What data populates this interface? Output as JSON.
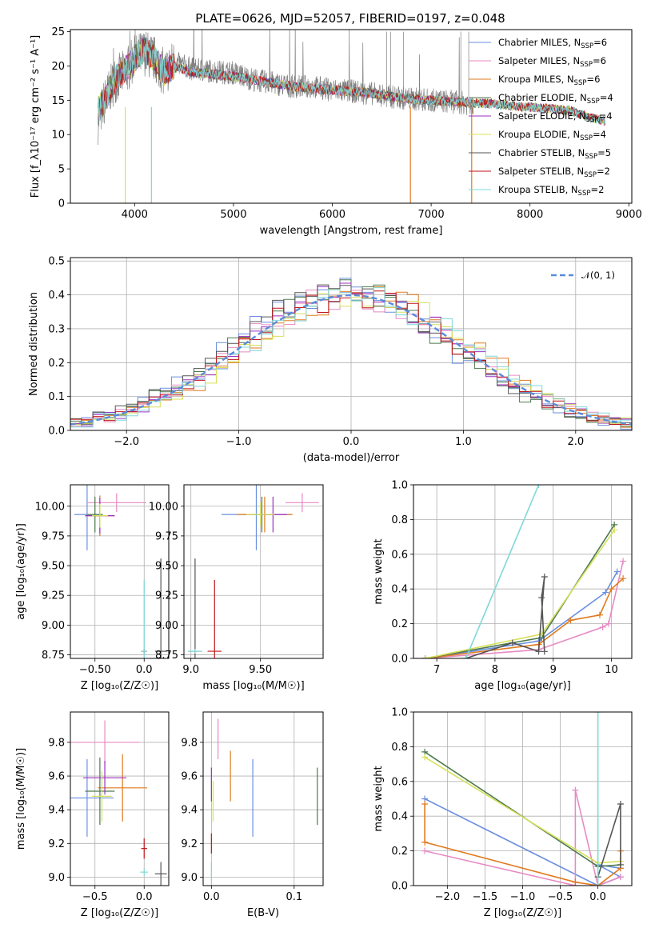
{
  "figure_title": "PLATE=0626, MJD=52057, FIBERID=0197, z=0.048",
  "colors": {
    "chabrier_miles": "#6a8fe0",
    "salpeter_miles": "#e78ac3",
    "kroupa_miles": "#e07a1f",
    "chabrier_elodie": "#4d7a4d",
    "salpeter_elodie": "#9b30c0",
    "kroupa_elodie": "#d6e05a",
    "chabrier_stelib": "#555555",
    "salpeter_stelib": "#c0161b",
    "kroupa_stelib": "#7fd8d8",
    "data": "#808080",
    "gaussian": "#5b8bd9"
  },
  "chart_data": [
    {
      "id": "spectrum",
      "type": "line",
      "title": "PLATE=0626, MJD=52057, FIBERID=0197, z=0.048",
      "xlabel": "wavelength [Angstrom, rest frame]",
      "ylabel": "Flux [f_λ10⁻¹⁷ erg cm⁻² s⁻¹ A⁻¹]",
      "xlim": [
        3350,
        9030
      ],
      "ylim": [
        0,
        25.3
      ],
      "xticks": [
        4000,
        5000,
        6000,
        7000,
        8000,
        9000
      ],
      "yticks": [
        0,
        5,
        10,
        15,
        20,
        25
      ],
      "legend_position": "top-right",
      "legend": [
        {
          "label": "Chabrier MILES, N",
          "sub": "SSP",
          "suffix": "=6",
          "color": "#6a8fe0"
        },
        {
          "label": "Salpeter MILES, N",
          "sub": "SSP",
          "suffix": "=6",
          "color": "#e78ac3"
        },
        {
          "label": "Kroupa MILES, N",
          "sub": "SSP",
          "suffix": "=6",
          "color": "#e07a1f"
        },
        {
          "label": "Chabrier ELODIE, N",
          "sub": "SSP",
          "suffix": "=4",
          "color": "#4d7a4d"
        },
        {
          "label": "Salpeter ELODIE, N",
          "sub": "SSP",
          "suffix": "=4",
          "color": "#9b30c0"
        },
        {
          "label": "Kroupa ELODIE, N",
          "sub": "SSP",
          "suffix": "=4",
          "color": "#d6e05a"
        },
        {
          "label": "Chabrier STELIB, N",
          "sub": "SSP",
          "suffix": "=5",
          "color": "#555555"
        },
        {
          "label": "Salpeter STELIB, N",
          "sub": "SSP",
          "suffix": "=2",
          "color": "#c0161b"
        },
        {
          "label": "Kroupa STELIB, N",
          "sub": "SSP",
          "suffix": "=2",
          "color": "#7fd8d8"
        }
      ],
      "data_envelope": {
        "x": [
          3630,
          3700,
          3800,
          3900,
          4000,
          4100,
          4200,
          4300,
          4400,
          4500,
          4600,
          4800,
          5000,
          5200,
          5400,
          5600,
          5800,
          6000,
          6200,
          6400,
          6600,
          6800,
          7000,
          7200,
          7400
        ],
        "y": [
          12,
          15,
          18,
          19,
          21,
          22,
          21,
          19,
          20.5,
          20,
          19.5,
          19.2,
          19,
          18,
          17.5,
          17,
          17,
          16.5,
          16.3,
          16,
          15.5,
          15.2,
          15,
          14.8,
          14.5
        ]
      },
      "model_envelope": {
        "x": [
          3630,
          3700,
          3800,
          3900,
          4000,
          4100,
          4200,
          4300,
          4400,
          4500,
          4600,
          4800,
          5000,
          5200,
          5400,
          5600,
          5800,
          6000,
          6200,
          6400,
          6600,
          6800,
          7000,
          7200,
          7400,
          7600,
          7800,
          8000,
          8200,
          8400,
          8600,
          8750
        ],
        "y": [
          13.5,
          15,
          18,
          19.5,
          21,
          22.5,
          21,
          19,
          20,
          19.5,
          19,
          18.8,
          18.5,
          18,
          17.5,
          17,
          16.8,
          16.5,
          16.3,
          16,
          15.5,
          15.2,
          15,
          14.8,
          14.6,
          14.5,
          14.2,
          14,
          13.8,
          13.5,
          12.5,
          12
        ]
      }
    },
    {
      "id": "residuals",
      "type": "line",
      "xlabel": "(data-model)/error",
      "ylabel": "Normed distribution",
      "xlim": [
        -2.5,
        2.5
      ],
      "ylim": [
        0,
        0.51
      ],
      "xticks": [
        -2,
        -1,
        0,
        1,
        2
      ],
      "yticks": [
        0.0,
        0.1,
        0.2,
        0.3,
        0.4,
        0.5
      ],
      "legend": "𝒩(0, 1)",
      "legend_position": "top-right",
      "histogram_bin_width": 0.1,
      "series_colors": [
        "#6a8fe0",
        "#e78ac3",
        "#e07a1f",
        "#4d7a4d",
        "#9b30c0",
        "#d6e05a",
        "#555555",
        "#c0161b",
        "#7fd8d8"
      ]
    },
    {
      "id": "z_age",
      "type": "scatter",
      "xlabel": "Z [log₁₀(Z/Z☉)]",
      "ylabel": "age  [log₁₀(age/yr)]",
      "xlim": [
        -0.75,
        0.25
      ],
      "ylim": [
        8.72,
        10.18
      ],
      "xticks": [
        -0.5,
        0.0
      ],
      "yticks": [
        8.75,
        9.0,
        9.25,
        9.5,
        9.75,
        10.0
      ],
      "points": [
        {
          "x": -0.58,
          "y": 9.93,
          "xerr": 0.13,
          "yerr": 0.3,
          "color": "#6a8fe0"
        },
        {
          "x": -0.28,
          "y": 10.03,
          "xerr": 0.3,
          "yerr": 0.08,
          "color": "#e78ac3"
        },
        {
          "x": -0.45,
          "y": 9.92,
          "xerr": 0.15,
          "yerr": 0.17,
          "color": "#e07a1f"
        },
        {
          "x": -0.5,
          "y": 9.93,
          "xerr": 0.08,
          "yerr": 0.15,
          "color": "#4d7a4d"
        },
        {
          "x": -0.45,
          "y": 9.92,
          "xerr": 0.15,
          "yerr": 0.15,
          "color": "#9b30c0"
        },
        {
          "x": -0.45,
          "y": 9.92,
          "xerr": 0.08,
          "yerr": 0.1,
          "color": "#d6e05a"
        },
        {
          "x": 0.17,
          "y": 8.78,
          "xerr": 0.06,
          "yerr": 0.78,
          "color": "#555555"
        },
        {
          "x": 0.0,
          "y": 8.78,
          "xerr": 0.03,
          "yerr": 0.02,
          "color": "#c0161b"
        },
        {
          "x": 0.0,
          "y": 8.78,
          "xerr": 0.03,
          "yerr": 0.6,
          "color": "#7fd8d8"
        }
      ]
    },
    {
      "id": "mass_age",
      "type": "scatter",
      "xlabel": "mass [log₁₀(M/M☉)]",
      "ylabel": "",
      "xlim": [
        8.95,
        9.95
      ],
      "ylim": [
        8.72,
        10.18
      ],
      "xticks": [
        9.0,
        9.5
      ],
      "yticks": [
        8.75,
        9.0,
        9.25,
        9.5,
        9.75,
        10.0
      ],
      "points": [
        {
          "x": 9.47,
          "y": 9.93,
          "xerr": 0.25,
          "yerr": 0.3,
          "color": "#6a8fe0"
        },
        {
          "x": 9.8,
          "y": 10.03,
          "xerr": 0.12,
          "yerr": 0.08,
          "color": "#e78ac3"
        },
        {
          "x": 9.53,
          "y": 9.93,
          "xerr": 0.2,
          "yerr": 0.15,
          "color": "#e07a1f"
        },
        {
          "x": 9.51,
          "y": 9.93,
          "xerr": 0.1,
          "yerr": 0.15,
          "color": "#4d7a4d"
        },
        {
          "x": 9.59,
          "y": 9.93,
          "xerr": 0.1,
          "yerr": 0.15,
          "color": "#9b30c0"
        },
        {
          "x": 9.5,
          "y": 9.93,
          "xerr": 0.1,
          "yerr": 0.1,
          "color": "#d6e05a"
        },
        {
          "x": 9.03,
          "y": 8.78,
          "xerr": 0.05,
          "yerr": 0.78,
          "color": "#555555"
        },
        {
          "x": 9.17,
          "y": 8.78,
          "xerr": 0.05,
          "yerr": 0.6,
          "color": "#c0161b"
        },
        {
          "x": 9.03,
          "y": 8.78,
          "xerr": 0.05,
          "yerr": 0.02,
          "color": "#7fd8d8"
        }
      ]
    },
    {
      "id": "age_weight",
      "type": "line",
      "xlabel": "age  [log₁₀(age/yr)]",
      "ylabel": "mass weight",
      "xlim": [
        6.6,
        10.35
      ],
      "ylim": [
        0,
        1.0
      ],
      "xticks": [
        7,
        8,
        9,
        10
      ],
      "yticks": [
        0.0,
        0.2,
        0.4,
        0.6,
        0.8,
        1.0
      ],
      "series": [
        {
          "color": "#6a8fe0",
          "x": [
            6.8,
            8.75,
            9.9,
            10.1
          ],
          "y": [
            0.0,
            0.1,
            0.38,
            0.5
          ]
        },
        {
          "color": "#e78ac3",
          "x": [
            6.8,
            8.75,
            9.85,
            9.95,
            10.2
          ],
          "y": [
            0.0,
            0.05,
            0.18,
            0.2,
            0.56
          ]
        },
        {
          "color": "#e07a1f",
          "x": [
            6.8,
            8.75,
            9.3,
            9.8,
            10.0,
            10.2
          ],
          "y": [
            0.0,
            0.08,
            0.22,
            0.25,
            0.4,
            0.46
          ]
        },
        {
          "color": "#4d7a4d",
          "x": [
            6.8,
            8.8,
            10.05
          ],
          "y": [
            0.0,
            0.12,
            0.77
          ]
        },
        {
          "color": "#d6e05a",
          "x": [
            6.8,
            8.8,
            10.05
          ],
          "y": [
            0.0,
            0.14,
            0.74
          ]
        },
        {
          "color": "#555555",
          "x": [
            7.5,
            8.3,
            8.75,
            8.85,
            8.8,
            8.85
          ],
          "y": [
            0.0,
            0.09,
            0.04,
            0.47,
            0.35,
            0.04
          ]
        },
        {
          "color": "#7fd8d8",
          "x": [
            7.5,
            8.75
          ],
          "y": [
            0.0,
            1.0
          ]
        }
      ]
    },
    {
      "id": "z_mass",
      "type": "scatter",
      "xlabel": "Z [log₁₀(Z/Z☉)]",
      "ylabel": "mass [log₁₀(M/M☉)]",
      "xlim": [
        -0.75,
        0.25
      ],
      "ylim": [
        8.95,
        9.98
      ],
      "xticks": [
        -0.5,
        0.0
      ],
      "yticks": [
        9.0,
        9.2,
        9.4,
        9.6,
        9.8
      ],
      "points": [
        {
          "x": -0.58,
          "y": 9.47,
          "xerr": 0.27,
          "yerr": 0.23,
          "color": "#6a8fe0"
        },
        {
          "x": -0.4,
          "y": 9.8,
          "xerr": 0.35,
          "yerr": 0.13,
          "color": "#e78ac3"
        },
        {
          "x": -0.22,
          "y": 9.53,
          "xerr": 0.25,
          "yerr": 0.2,
          "color": "#e07a1f"
        },
        {
          "x": -0.45,
          "y": 9.51,
          "xerr": 0.15,
          "yerr": 0.2,
          "color": "#4d7a4d"
        },
        {
          "x": -0.4,
          "y": 9.59,
          "xerr": 0.22,
          "yerr": 0.1,
          "color": "#9b30c0"
        },
        {
          "x": -0.43,
          "y": 9.48,
          "xerr": 0.1,
          "yerr": 0.15,
          "color": "#d6e05a"
        },
        {
          "x": 0.17,
          "y": 9.02,
          "xerr": 0.06,
          "yerr": 0.07,
          "color": "#555555"
        },
        {
          "x": 0.0,
          "y": 9.17,
          "xerr": 0.03,
          "yerr": 0.06,
          "color": "#c0161b"
        },
        {
          "x": 0.0,
          "y": 9.03,
          "xerr": 0.04,
          "yerr": 0.02,
          "color": "#7fd8d8"
        }
      ]
    },
    {
      "id": "ebv_mass",
      "type": "scatter",
      "xlabel": "E(B-V)",
      "ylabel": "",
      "xlim": [
        -0.01,
        0.135
      ],
      "ylim": [
        8.95,
        9.98
      ],
      "xticks": [
        0.0,
        0.1
      ],
      "yticks": [
        9.0,
        9.2,
        9.4,
        9.6,
        9.8
      ],
      "points": [
        {
          "x": 0.05,
          "y": 9.47,
          "xerr": 0.0,
          "yerr": 0.23,
          "color": "#6a8fe0"
        },
        {
          "x": 0.008,
          "y": 9.82,
          "xerr": 0.0,
          "yerr": 0.12,
          "color": "#e78ac3"
        },
        {
          "x": 0.023,
          "y": 9.6,
          "xerr": 0.0,
          "yerr": 0.15,
          "color": "#e07a1f"
        },
        {
          "x": 0.128,
          "y": 9.48,
          "xerr": 0.0,
          "yerr": 0.17,
          "color": "#4d7a4d"
        },
        {
          "x": 0.0,
          "y": 9.55,
          "xerr": 0.0,
          "yerr": 0.1,
          "color": "#9b30c0"
        },
        {
          "x": 0.002,
          "y": 9.45,
          "xerr": 0.0,
          "yerr": 0.12,
          "color": "#d6e05a"
        },
        {
          "x": 0.0,
          "y": 9.2,
          "xerr": 0.0,
          "yerr": 0.06,
          "color": "#c0161b"
        },
        {
          "x": 0.0,
          "y": 9.03,
          "xerr": 0.0,
          "yerr": 0.06,
          "color": "#7fd8d8"
        }
      ]
    },
    {
      "id": "z_weight",
      "type": "line",
      "xlabel": "Z [log₁₀(Z/Z☉)]",
      "ylabel": "mass weight",
      "xlim": [
        -2.45,
        0.45
      ],
      "ylim": [
        0,
        1.0
      ],
      "xticks": [
        -2.0,
        -1.5,
        -1.0,
        -0.5,
        0.0
      ],
      "yticks": [
        0.0,
        0.2,
        0.4,
        0.6,
        0.8,
        1.0
      ],
      "series": [
        {
          "color": "#6a8fe0",
          "x": [
            -2.3,
            0.0,
            0.3,
            0.0,
            0.3
          ],
          "y": [
            0.5,
            0.0,
            0.05,
            0.12,
            0.1
          ]
        },
        {
          "color": "#e78ac3",
          "x": [
            -2.3,
            -0.3,
            -0.3,
            0.0,
            0.3
          ],
          "y": [
            0.2,
            0.0,
            0.55,
            0.0,
            0.05
          ]
        },
        {
          "color": "#e07a1f",
          "x": [
            -2.3,
            -2.3,
            -0.3,
            0.0,
            0.3,
            0.3
          ],
          "y": [
            0.47,
            0.25,
            0.02,
            0.0,
            0.1,
            0.2
          ]
        },
        {
          "color": "#4d7a4d",
          "x": [
            -2.3,
            0.0,
            0.3
          ],
          "y": [
            0.77,
            0.11,
            0.12
          ]
        },
        {
          "color": "#d6e05a",
          "x": [
            -2.3,
            0.0,
            0.3
          ],
          "y": [
            0.74,
            0.13,
            0.14
          ]
        },
        {
          "color": "#555555",
          "x": [
            0.0,
            0.3,
            0.3
          ],
          "y": [
            0.05,
            0.47,
            0.12
          ]
        },
        {
          "color": "#7fd8d8",
          "x": [
            0.0,
            0.0
          ],
          "y": [
            0.0,
            1.0
          ]
        }
      ]
    }
  ]
}
